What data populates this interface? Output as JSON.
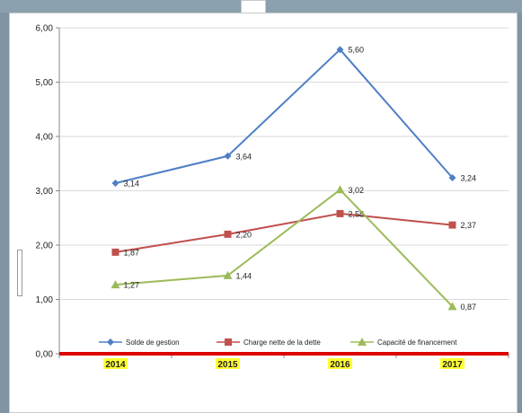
{
  "chart_data": {
    "type": "line",
    "categories": [
      "2014",
      "2015",
      "2016",
      "2017"
    ],
    "ylim": [
      0,
      6
    ],
    "ytick_labels": [
      "0,00",
      "1,00",
      "2,00",
      "3,00",
      "4,00",
      "5,00",
      "6,00"
    ],
    "grid": true,
    "legend_position": "bottom",
    "series": [
      {
        "name": "Solde de gestion",
        "values": [
          3.14,
          3.64,
          5.6,
          3.24
        ],
        "labels": [
          "3,14",
          "3,64",
          "5,60",
          "3,24"
        ],
        "color": "#4f7fc6",
        "marker": "diamond"
      },
      {
        "name": "Charge nette de la dette",
        "values": [
          1.87,
          2.2,
          2.58,
          2.37
        ],
        "labels": [
          "1,87",
          "2,20",
          "2,58",
          "2,37"
        ],
        "color": "#c0504d",
        "marker": "square"
      },
      {
        "name": "Capacité de financement",
        "values": [
          1.27,
          1.44,
          3.02,
          0.87
        ],
        "labels": [
          "1,27",
          "1,44",
          "3,02",
          "0,87"
        ],
        "color": "#9bbb59",
        "marker": "triangle"
      }
    ],
    "baseline_color": "#dd0000",
    "category_highlight": "#ffff33"
  }
}
